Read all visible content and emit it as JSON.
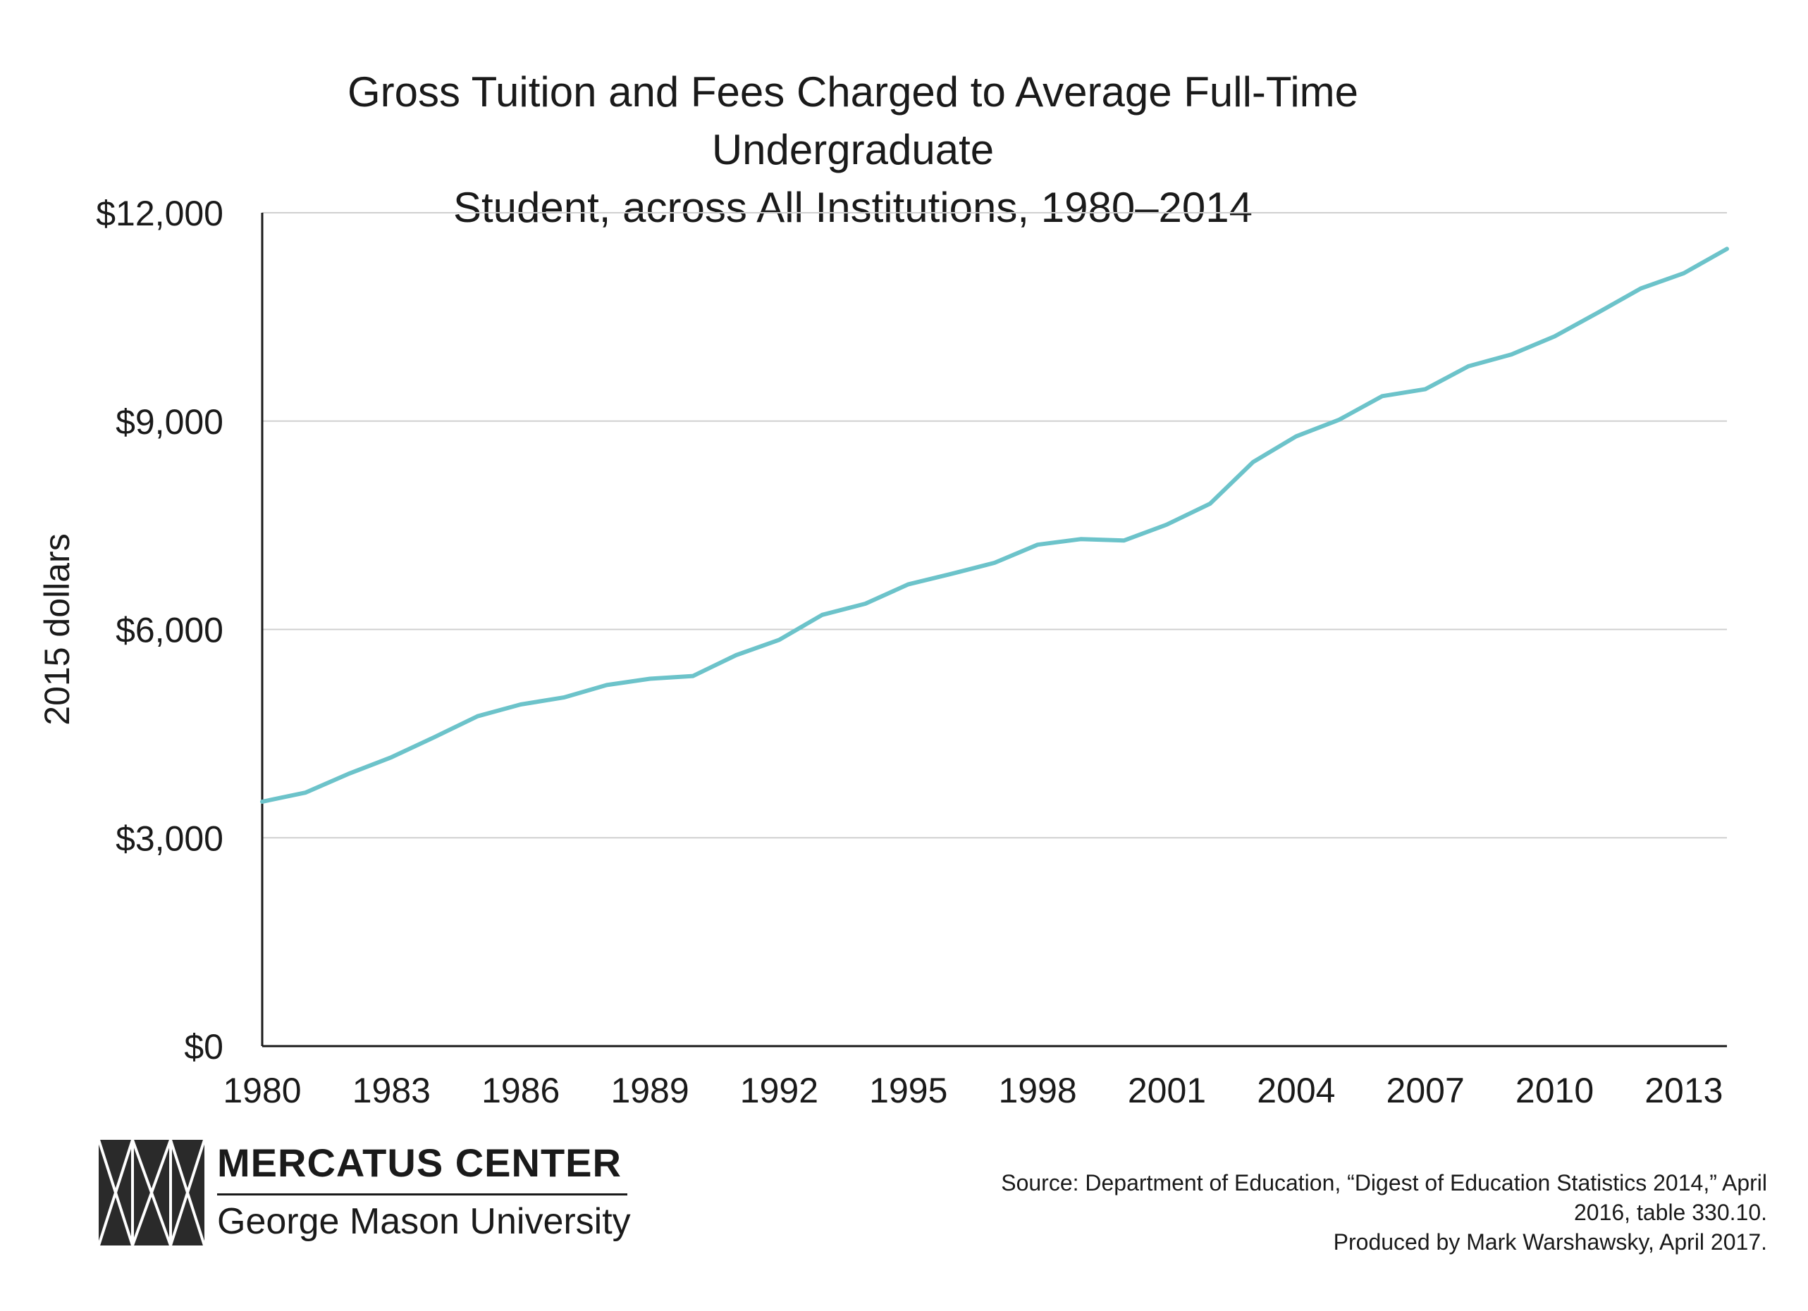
{
  "chart_data": {
    "type": "line",
    "title_lines": [
      "Gross Tuition and Fees Charged to Average Full-Time Undergraduate",
      "Student, across All Institutions, 1980–2014"
    ],
    "ylabel": "2015 dollars",
    "xlabel": "",
    "ylim": [
      0,
      12000
    ],
    "xlim": [
      1980,
      2014
    ],
    "y_ticks": [
      0,
      3000,
      6000,
      9000,
      12000
    ],
    "y_tick_labels": [
      "$0",
      "$3,000",
      "$6,000",
      "$9,000",
      "$12,000"
    ],
    "x_tick_labels": [
      "1980",
      "1983",
      "1986",
      "1989",
      "1992",
      "1995",
      "1998",
      "2001",
      "2004",
      "2007",
      "2010",
      "2013"
    ],
    "grid": "horizontal",
    "line_color": "#6cc3ca",
    "series": [
      {
        "x": [
          1980,
          1981,
          1982,
          1983,
          1984,
          1985,
          1986,
          1987,
          1988,
          1989,
          1990,
          1991,
          1992,
          1993,
          1994,
          1995,
          1996,
          1997,
          1998,
          1999,
          2000,
          2001,
          2002,
          2003,
          2004,
          2005,
          2006,
          2007,
          2008,
          2009,
          2010,
          2011,
          2012,
          2013,
          2014
        ],
        "values": [
          3520,
          3650,
          3920,
          4160,
          4450,
          4750,
          4920,
          5020,
          5200,
          5290,
          5330,
          5630,
          5850,
          6210,
          6370,
          6650,
          6800,
          6960,
          7220,
          7300,
          7280,
          7510,
          7810,
          8410,
          8780,
          9020,
          9360,
          9460,
          9790,
          9960,
          10220,
          10560,
          10910,
          11130,
          11480
        ]
      }
    ]
  },
  "logo": {
    "org_name": "MERCATUS CENTER",
    "university": "George Mason University"
  },
  "source_lines": [
    "Source: Department of Education, “Digest of Education Statistics 2014,” April",
    "2016, table 330.10.",
    "Produced by Mark Warshawsky, April 2017."
  ]
}
